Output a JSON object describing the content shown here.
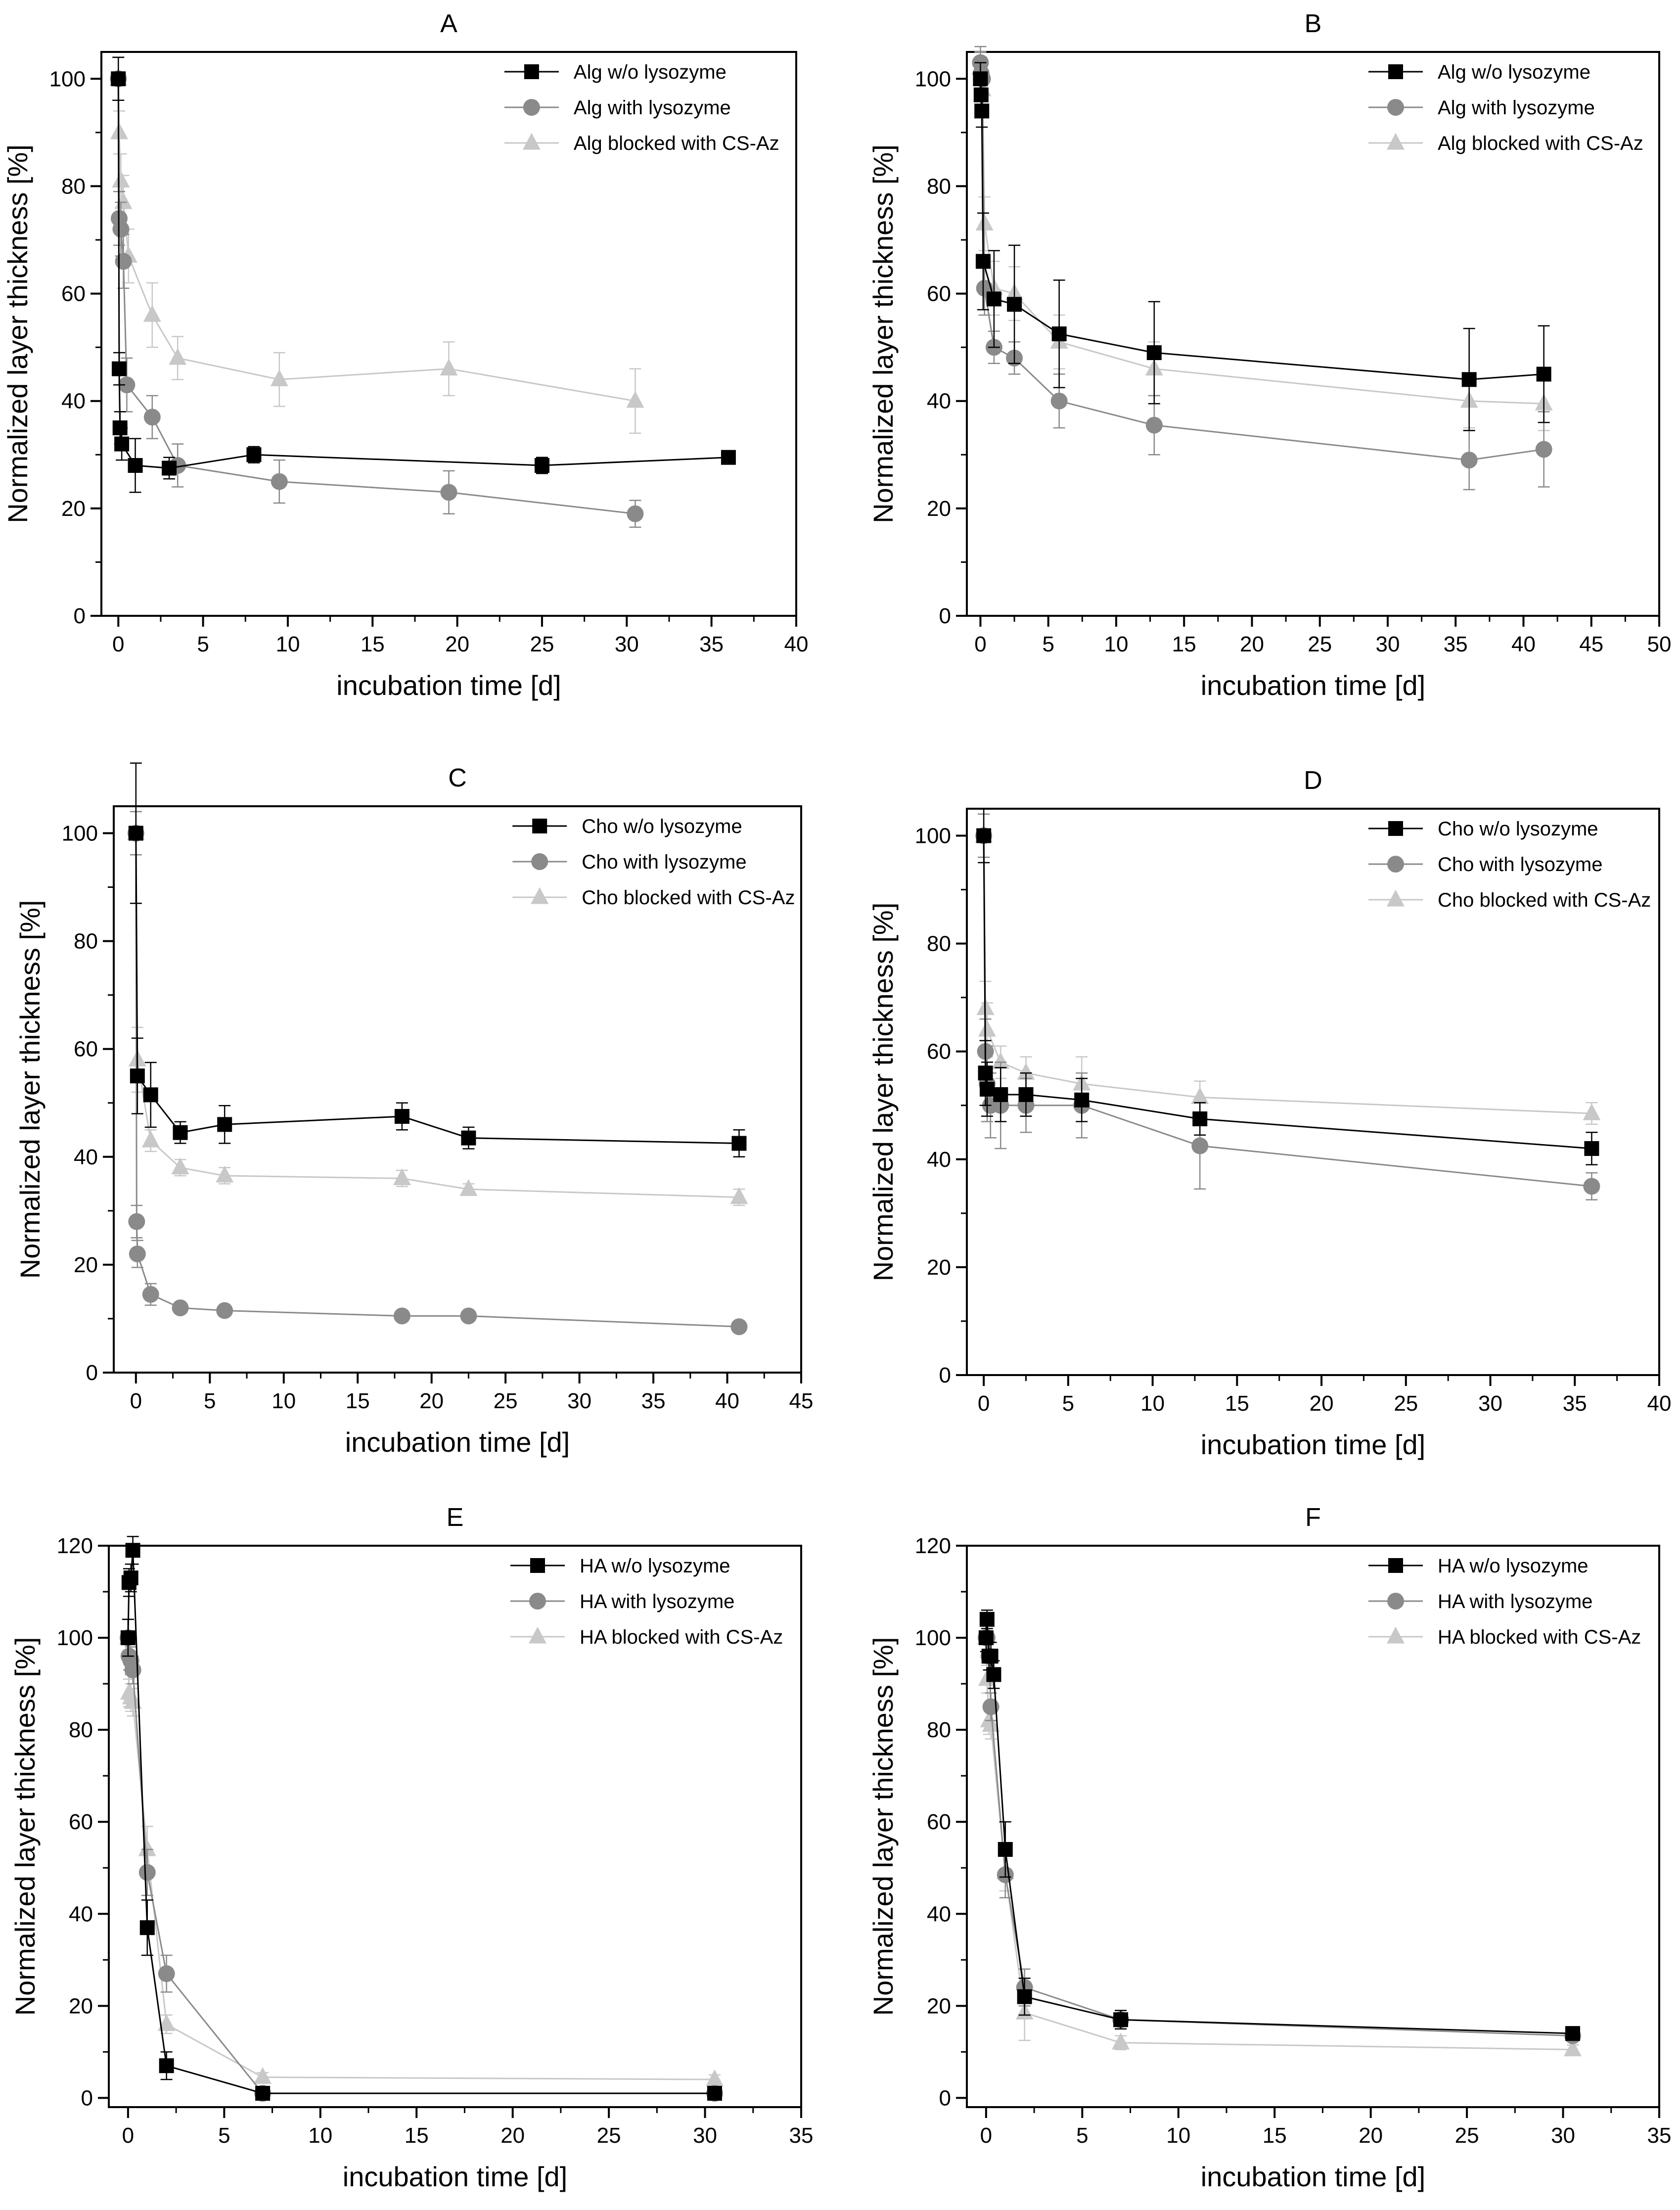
{
  "colors": {
    "series_1": "#000000",
    "series_2": "#8a8a8a",
    "series_3": "#c8c8c8",
    "axis": "#000000",
    "background": "#ffffff"
  },
  "chart_data": [
    {
      "id": "A",
      "type": "scatter",
      "title": "A",
      "xlabel": "incubation time [d]",
      "ylabel": "Normalized layer thickness [%]",
      "xlim": [
        -1,
        40
      ],
      "ylim": [
        0,
        105
      ],
      "xticks": [
        0,
        5,
        10,
        15,
        20,
        25,
        30,
        35,
        40
      ],
      "yticks": [
        0,
        20,
        40,
        60,
        80,
        100
      ],
      "legend_position": "top-right",
      "series": [
        {
          "name": "Alg w/o lysozyme",
          "marker": "square",
          "x": [
            0,
            0.05,
            0.1,
            0.2,
            1,
            3,
            8,
            25,
            36
          ],
          "y": [
            100,
            46,
            35,
            32,
            28,
            27.5,
            30,
            28,
            29.5
          ],
          "err": [
            4,
            3,
            3,
            3,
            5,
            2,
            1.5,
            1.5,
            1
          ]
        },
        {
          "name": "Alg with lysozyme",
          "marker": "circle",
          "x": [
            0,
            0.05,
            0.15,
            0.3,
            0.5,
            2,
            3.5,
            9.5,
            19.5,
            30.5
          ],
          "y": [
            100,
            74,
            72,
            66,
            43,
            37,
            28,
            25,
            23,
            19
          ],
          "err": [
            4,
            5,
            5,
            5,
            5,
            4,
            4,
            4,
            4,
            2.5
          ]
        },
        {
          "name": "Alg blocked with CS-Az",
          "marker": "triangle",
          "x": [
            0,
            0.05,
            0.15,
            0.3,
            0.6,
            2,
            3.5,
            9.5,
            19.5,
            30.5
          ],
          "y": [
            100,
            90,
            81,
            77,
            67,
            56,
            48,
            44,
            46,
            40
          ],
          "err": [
            4,
            4,
            5,
            5,
            5,
            6,
            4,
            5,
            5,
            6
          ]
        }
      ]
    },
    {
      "id": "B",
      "type": "scatter",
      "title": "B",
      "xlabel": "incubation time [d]",
      "ylabel": "Normalized layer thickness [%]",
      "xlim": [
        -1,
        50
      ],
      "ylim": [
        0,
        105
      ],
      "xticks": [
        0,
        5,
        10,
        15,
        20,
        25,
        30,
        35,
        40,
        45,
        50
      ],
      "yticks": [
        0,
        20,
        40,
        60,
        80,
        100
      ],
      "legend_position": "top-right",
      "series": [
        {
          "name": "Alg w/o lysozyme",
          "marker": "square",
          "x": [
            0,
            0.05,
            0.1,
            0.2,
            1,
            2.5,
            5.8,
            12.8,
            36,
            41.5
          ],
          "y": [
            100,
            97,
            94,
            66,
            59,
            58,
            52.5,
            49,
            44,
            45
          ],
          "err": [
            3,
            4,
            3,
            9,
            9,
            11,
            10,
            9.5,
            9.5,
            9
          ]
        },
        {
          "name": "Alg with lysozyme",
          "marker": "circle",
          "x": [
            0,
            0.05,
            0.15,
            0.3,
            1,
            2.5,
            5.8,
            12.8,
            36,
            41.5
          ],
          "y": [
            103,
            101,
            100,
            61,
            50,
            48,
            40,
            35.5,
            29,
            31
          ],
          "err": [
            3,
            3,
            3,
            5,
            3,
            3,
            5,
            5.5,
            5.5,
            7
          ]
        },
        {
          "name": "Alg blocked with CS-Az",
          "marker": "triangle",
          "x": [
            0,
            0.05,
            0.15,
            0.3,
            1,
            2.5,
            5.8,
            12.8,
            36,
            41.5
          ],
          "y": [
            102,
            101,
            98,
            73,
            61,
            60,
            51,
            46,
            40,
            39.5
          ],
          "err": [
            3,
            3,
            3,
            5,
            5,
            5,
            5,
            5,
            5,
            5
          ]
        }
      ]
    },
    {
      "id": "C",
      "type": "scatter",
      "title": "C",
      "xlabel": "incubation time [d]",
      "ylabel": "Normalized layer thickness [%]",
      "xlim": [
        -1.5,
        45
      ],
      "ylim": [
        0,
        105
      ],
      "xticks": [
        0,
        5,
        10,
        15,
        20,
        25,
        30,
        35,
        40,
        45
      ],
      "yticks": [
        0,
        20,
        40,
        60,
        80,
        100
      ],
      "legend_position": "top-right",
      "series": [
        {
          "name": "Cho w/o lysozyme",
          "marker": "square",
          "x": [
            0,
            0.1,
            1,
            3,
            6,
            18,
            22.5,
            40.8
          ],
          "y": [
            100,
            55,
            51.5,
            44.5,
            46,
            47.5,
            43.5,
            42.5
          ],
          "err": [
            13,
            7,
            6,
            2,
            3.5,
            2.5,
            2,
            2.5
          ]
        },
        {
          "name": "Cho with lysozyme",
          "marker": "circle",
          "x": [
            0,
            0.05,
            0.1,
            1,
            3,
            6,
            18,
            22.5,
            40.8
          ],
          "y": [
            100,
            28,
            22,
            14.5,
            12,
            11.5,
            10.5,
            10.5,
            8.5
          ],
          "err": [
            4,
            3,
            2.5,
            2,
            1,
            1,
            1,
            1,
            1
          ]
        },
        {
          "name": "Cho blocked with CS-Az",
          "marker": "triangle",
          "x": [
            0,
            0.1,
            1,
            3,
            6,
            18,
            22.5,
            40.8
          ],
          "y": [
            100,
            58,
            43,
            38,
            36.5,
            36,
            34,
            32.5
          ],
          "err": [
            4,
            6,
            2,
            1.5,
            1.5,
            1.5,
            1,
            1.5
          ]
        }
      ]
    },
    {
      "id": "D",
      "type": "scatter",
      "title": "D",
      "xlabel": "incubation time [d]",
      "ylabel": "Normalized layer thickness [%]",
      "xlim": [
        -1,
        40
      ],
      "ylim": [
        0,
        105
      ],
      "xticks": [
        0,
        5,
        10,
        15,
        20,
        25,
        30,
        35,
        40
      ],
      "yticks": [
        0,
        20,
        40,
        60,
        80,
        100
      ],
      "legend_position": "top-right",
      "series": [
        {
          "name": "Cho w/o lysozyme",
          "marker": "square",
          "x": [
            0,
            0.1,
            0.2,
            1,
            2.5,
            5.8,
            12.8,
            36
          ],
          "y": [
            100,
            56,
            53,
            52,
            52,
            51,
            47.5,
            42
          ],
          "err": [
            5,
            6,
            5,
            5,
            4,
            4,
            3,
            3
          ]
        },
        {
          "name": "Cho with lysozyme",
          "marker": "circle",
          "x": [
            0,
            0.1,
            0.2,
            0.4,
            1,
            2.5,
            5.8,
            12.8,
            36
          ],
          "y": [
            100,
            60,
            54,
            50,
            50,
            50,
            50,
            42.5,
            35
          ],
          "err": [
            4,
            6,
            7,
            6,
            8,
            5,
            6,
            8,
            2.5
          ]
        },
        {
          "name": "Cho blocked with CS-Az",
          "marker": "triangle",
          "x": [
            0,
            0.1,
            0.2,
            1,
            2.5,
            5.8,
            12.8,
            36
          ],
          "y": [
            100,
            68,
            64,
            58,
            56,
            54,
            51.5,
            48.5
          ],
          "err": [
            4,
            5,
            5,
            3,
            3,
            5,
            3,
            2
          ]
        }
      ]
    },
    {
      "id": "E",
      "type": "scatter",
      "title": "E",
      "xlabel": "incubation time [d]",
      "ylabel": "Normalized layer thickness [%]",
      "xlim": [
        -1,
        35
      ],
      "ylim": [
        -2,
        120
      ],
      "xticks": [
        0,
        5,
        10,
        15,
        20,
        25,
        30,
        35
      ],
      "yticks": [
        0,
        20,
        40,
        60,
        80,
        100,
        120
      ],
      "legend_position": "top-right",
      "series": [
        {
          "name": "HA w/o lysozyme",
          "marker": "square",
          "x": [
            0,
            0.05,
            0.15,
            0.25,
            1,
            2,
            7,
            30.5
          ],
          "y": [
            100,
            112,
            113,
            119,
            37,
            7,
            1,
            1
          ],
          "err": [
            4,
            3,
            3,
            3,
            6,
            3,
            0.5,
            0.5
          ]
        },
        {
          "name": "HA with lysozyme",
          "marker": "circle",
          "x": [
            0,
            0.05,
            0.15,
            0.25,
            1,
            2,
            7,
            30.5
          ],
          "y": [
            100,
            96,
            95,
            93,
            49,
            27,
            1,
            1
          ],
          "err": [
            4,
            3,
            3,
            3,
            5,
            4,
            0.5,
            0.5
          ]
        },
        {
          "name": "HA blocked with CS-Az",
          "marker": "triangle",
          "x": [
            0,
            0.05,
            0.15,
            0.25,
            1,
            2,
            7,
            30.5
          ],
          "y": [
            100,
            88,
            87,
            86,
            54,
            16,
            4.5,
            4
          ],
          "err": [
            4,
            3,
            3,
            3,
            5,
            2,
            1,
            1
          ]
        }
      ]
    },
    {
      "id": "F",
      "type": "scatter",
      "title": "F",
      "xlabel": "incubation time [d]",
      "ylabel": "Normalized layer thickness [%]",
      "xlim": [
        -1,
        35
      ],
      "ylim": [
        -2,
        120
      ],
      "xticks": [
        0,
        5,
        10,
        15,
        20,
        25,
        30,
        35
      ],
      "yticks": [
        0,
        20,
        40,
        60,
        80,
        100,
        120
      ],
      "legend_position": "top-right",
      "series": [
        {
          "name": "HA w/o lysozyme",
          "marker": "square",
          "x": [
            0,
            0.05,
            0.15,
            0.25,
            0.4,
            1,
            2,
            7,
            30.5
          ],
          "y": [
            100,
            104,
            96,
            96,
            92,
            54,
            22,
            17,
            14
          ],
          "err": [
            3,
            2,
            3,
            3,
            3,
            6,
            4,
            2,
            1
          ]
        },
        {
          "name": "HA with lysozyme",
          "marker": "circle",
          "x": [
            0,
            0.05,
            0.15,
            0.25,
            1,
            2,
            7,
            30.5
          ],
          "y": [
            100,
            100,
            96,
            85,
            48.5,
            24,
            17,
            13.5
          ],
          "err": [
            3,
            3,
            3,
            3,
            5,
            4,
            2,
            1
          ]
        },
        {
          "name": "HA blocked with CS-Az",
          "marker": "triangle",
          "x": [
            0,
            0.05,
            0.15,
            0.25,
            1,
            2,
            7,
            30.5
          ],
          "y": [
            100,
            91,
            82,
            81,
            49,
            18.5,
            12,
            10.5
          ],
          "err": [
            3,
            3,
            3,
            3,
            4,
            6,
            1.5,
            1
          ]
        }
      ]
    }
  ]
}
